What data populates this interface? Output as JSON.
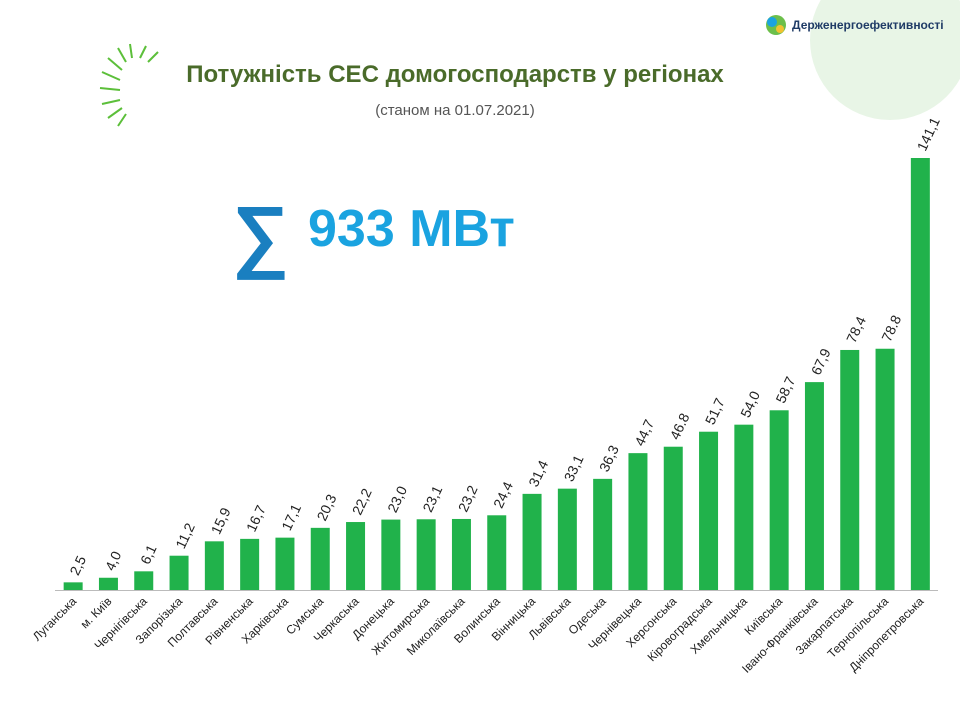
{
  "logo": "Держенергоефективності",
  "chart_data": {
    "type": "bar",
    "title": "Потужність СЕС домогосподарств у регіонах",
    "subtitle": "(станом на 01.07.2021)",
    "annotation": "933 МВт",
    "color": "#21b24b",
    "categories": [
      "Луганська",
      "м. Київ",
      "Чернігівська",
      "Запорізька",
      "Полтавська",
      "Рівненська",
      "Харківська",
      "Сумська",
      "Черкаська",
      "Донецька",
      "Житомирська",
      "Миколаївська",
      "Волинська",
      "Вінницька",
      "Львівська",
      "Одеська",
      "Чернівецька",
      "Херсонська",
      "Кіровоградська",
      "Хмельницька",
      "Київська",
      "Івано-Франківська",
      "Закарпатська",
      "Тернопільська",
      "Дніпропетровська"
    ],
    "values": [
      2.5,
      4.0,
      6.1,
      11.2,
      15.9,
      16.7,
      17.1,
      20.3,
      22.2,
      23.0,
      23.1,
      23.2,
      24.4,
      31.4,
      33.1,
      36.3,
      44.7,
      46.8,
      51.7,
      54.0,
      58.7,
      67.9,
      78.4,
      78.8,
      141.1
    ],
    "value_labels": [
      "2,5",
      "4,0",
      "6,1",
      "11,2",
      "15,9",
      "16,7",
      "17,1",
      "20,3",
      "22,2",
      "23,0",
      "23,1",
      "23,2",
      "24,4",
      "31,4",
      "33,1",
      "36,3",
      "44,7",
      "46.8",
      "51,7",
      "54,0",
      "58,7",
      "67,9",
      "78,4",
      "78.8",
      "141,1"
    ]
  }
}
